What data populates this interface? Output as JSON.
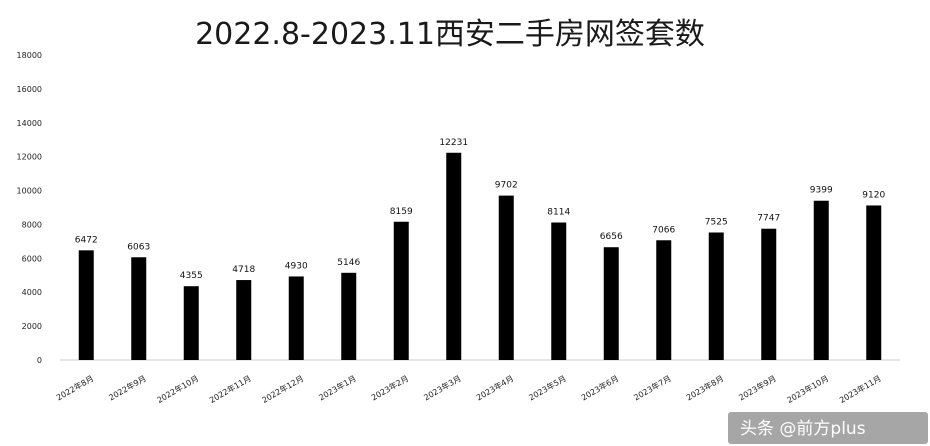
{
  "chart_data": {
    "type": "bar",
    "title": "2022.8-2023.11西安二手房网签套数",
    "categories": [
      "2022年8月",
      "2022年9月",
      "2022年10月",
      "2022年11月",
      "2022年12月",
      "2023年1月",
      "2023年2月",
      "2023年3月",
      "2023年4月",
      "2023年5月",
      "2023年6月",
      "2023年7月",
      "2023年8月",
      "2023年9月",
      "2023年10月",
      "2023年11月"
    ],
    "values": [
      6472,
      6063,
      4355,
      4718,
      4930,
      5146,
      8159,
      12231,
      9702,
      8114,
      6656,
      7066,
      7525,
      7747,
      9399,
      9120
    ],
    "ylim": [
      0,
      18000
    ],
    "yticks": [
      0,
      2000,
      4000,
      6000,
      8000,
      10000,
      12000,
      14000,
      16000,
      18000
    ],
    "grid": false,
    "bar_color": "#000000"
  },
  "watermark": {
    "text": "头条 @前方plus"
  }
}
